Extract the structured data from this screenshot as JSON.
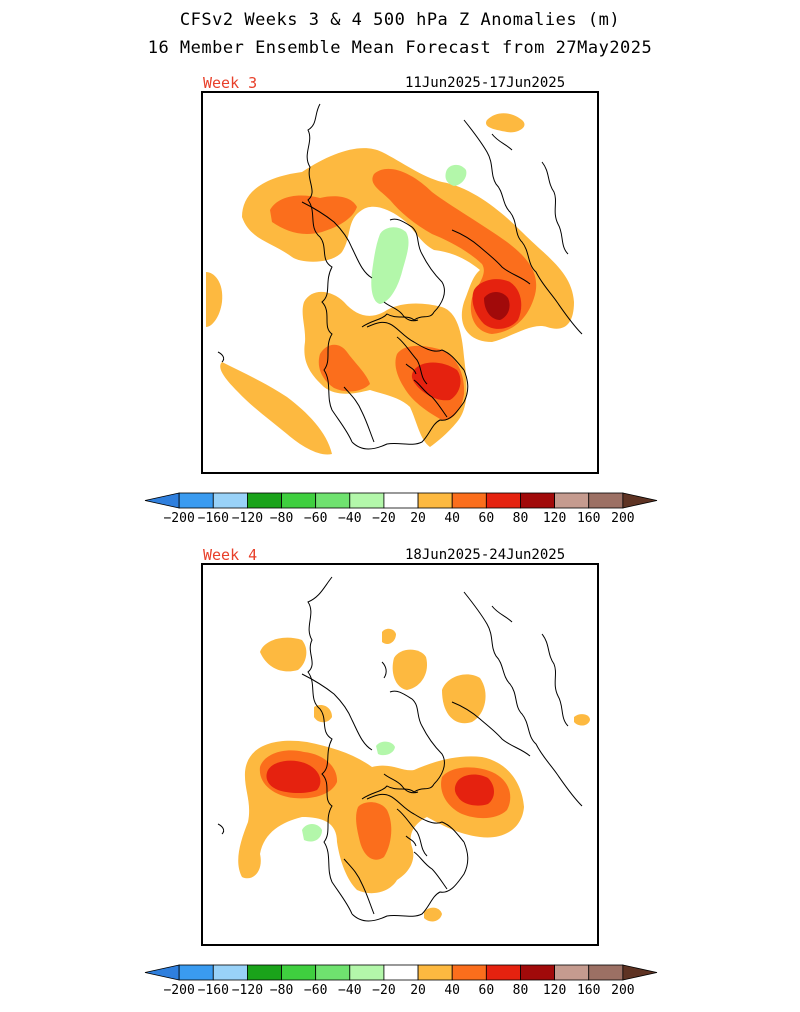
{
  "header": {
    "title": "CFSv2 Weeks 3 & 4 500 hPa Z Anomalies (m)",
    "subtitle": "16 Member Ensemble Mean Forecast from 27May2025"
  },
  "panels": [
    {
      "week_label": "Week 3",
      "date_range": "11Jun2025-17Jun2025"
    },
    {
      "week_label": "Week 4",
      "date_range": "18Jun2025-24Jun2025"
    }
  ],
  "colorbar": {
    "labels": [
      "-200",
      "-160",
      "-120",
      "-80",
      "-60",
      "-40",
      "-20",
      "20",
      "40",
      "60",
      "80",
      "120",
      "160",
      "200"
    ],
    "colors": [
      "#2f7fdd",
      "#3a9bf0",
      "#99d2f8",
      "#1aa31a",
      "#3fcf3f",
      "#6fe26f",
      "#b3f7aa",
      "#ffffff",
      "#fdb940",
      "#fb6e1c",
      "#e5220f",
      "#a10a0a",
      "#c59b8f",
      "#9c7064",
      "#5e3323"
    ]
  },
  "fill_colors": {
    "c20": "#fdb940",
    "c40": "#fb6e1c",
    "c60": "#e5220f",
    "c80": "#a10a0a",
    "neg20": "#b3f7aa"
  }
}
